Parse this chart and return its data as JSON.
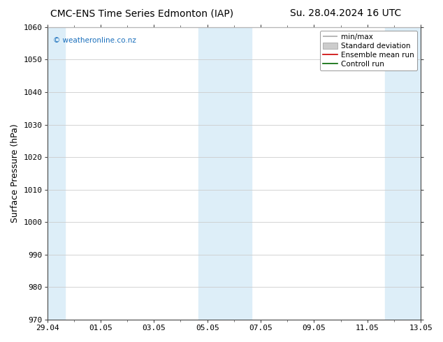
{
  "title_left": "CMC-ENS Time Series Edmonton (IAP)",
  "title_right": "Su. 28.04.2024 16 UTC",
  "ylabel": "Surface Pressure (hPa)",
  "ylim": [
    970,
    1060
  ],
  "yticks": [
    970,
    980,
    990,
    1000,
    1010,
    1020,
    1030,
    1040,
    1050,
    1060
  ],
  "xtick_labels": [
    "29.04",
    "01.05",
    "03.05",
    "05.05",
    "07.05",
    "09.05",
    "11.05",
    "13.05"
  ],
  "xtick_positions": [
    0,
    2,
    4,
    6,
    8,
    10,
    12,
    14
  ],
  "xlim": [
    0,
    14
  ],
  "watermark": "© weatheronline.co.nz",
  "watermark_color": "#1a6fbc",
  "bg_color": "#ffffff",
  "plot_bg_color": "#ffffff",
  "shaded_regions": [
    {
      "xstart": -0.33,
      "xend": 0.67,
      "color": "#ddeef8"
    },
    {
      "xstart": 5.67,
      "xend": 7.67,
      "color": "#ddeef8"
    },
    {
      "xstart": 12.67,
      "xend": 14.33,
      "color": "#ddeef8"
    }
  ],
  "legend_entries": [
    {
      "label": "min/max",
      "color": "#aaaaaa",
      "style": "errorbar"
    },
    {
      "label": "Standard deviation",
      "color": "#cccccc",
      "style": "bar"
    },
    {
      "label": "Ensemble mean run",
      "color": "#ff0000",
      "style": "line"
    },
    {
      "label": "Controll run",
      "color": "#008000",
      "style": "line"
    }
  ],
  "grid_color": "#cccccc",
  "tick_color": "#000000",
  "title_fontsize": 10,
  "label_fontsize": 9,
  "tick_fontsize": 8,
  "legend_fontsize": 7.5
}
